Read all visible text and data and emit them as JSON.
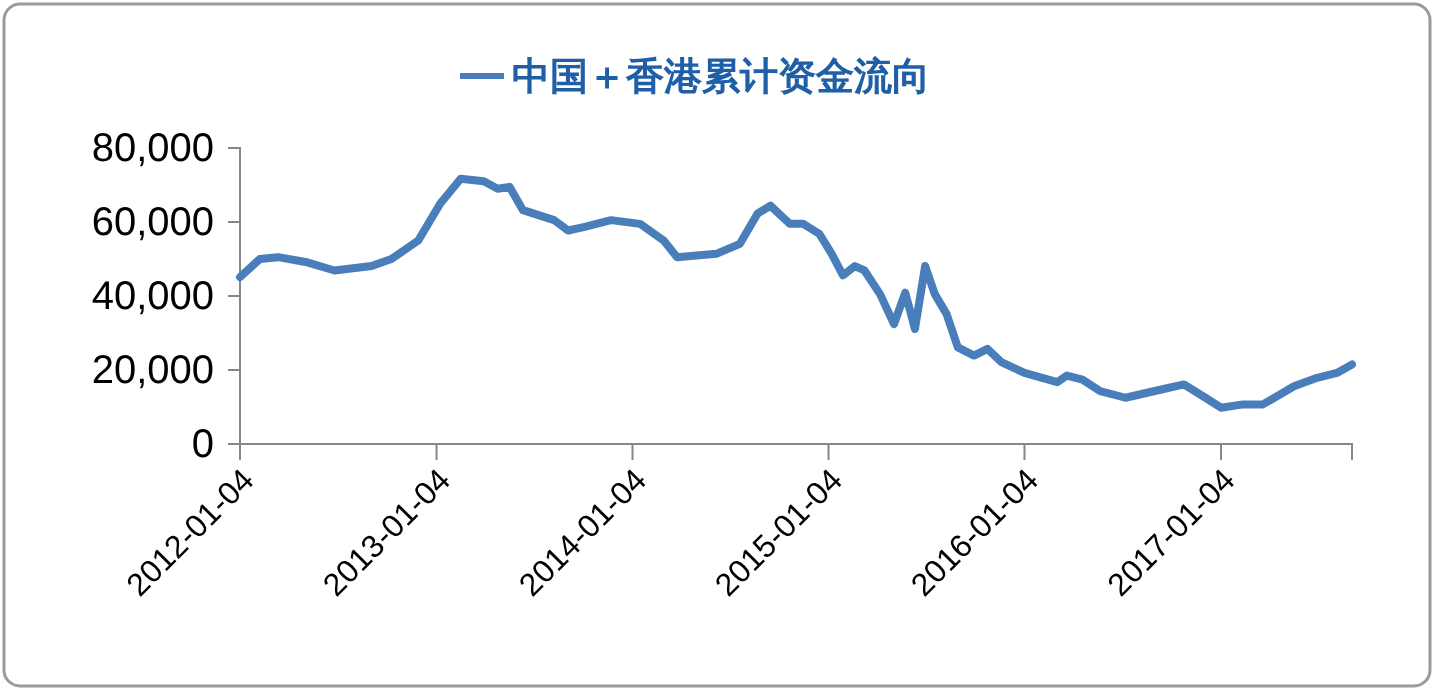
{
  "chart_data": {
    "type": "line",
    "legend": "top",
    "grid": false,
    "x": [
      "2012-01-04",
      "2012-02-10",
      "2012-03-15",
      "2012-05-05",
      "2012-06-28",
      "2012-09-05",
      "2012-10-12",
      "2012-12-01",
      "2013-01-11",
      "2013-02-18",
      "2013-04-02",
      "2013-04-28",
      "2013-05-20",
      "2013-06-14",
      "2013-08-11",
      "2013-09-06",
      "2013-10-05",
      "2013-11-25",
      "2014-01-18",
      "2014-03-03",
      "2014-03-28",
      "2014-06-09",
      "2014-07-23",
      "2014-08-25",
      "2014-09-18",
      "2014-10-24",
      "2014-11-18",
      "2014-12-18",
      "2015-01-10",
      "2015-01-31",
      "2015-02-22",
      "2015-03-12",
      "2015-04-10",
      "2015-05-06",
      "2015-05-27",
      "2015-06-14",
      "2015-07-03",
      "2015-07-21",
      "2015-08-12",
      "2015-09-02",
      "2015-10-02",
      "2015-10-27",
      "2015-11-22",
      "2016-01-04",
      "2016-03-05",
      "2016-03-23",
      "2016-04-21",
      "2016-05-24",
      "2016-07-10",
      "2016-09-17",
      "2016-10-27",
      "2016-12-06",
      "2017-01-04",
      "2017-02-14",
      "2017-03-23",
      "2017-05-20",
      "2017-07-02",
      "2017-08-08",
      "2017-09-05"
    ],
    "series": [
      {
        "name": "中国＋香港累计资金流向",
        "color": "#4a7ebb",
        "values": [
          45100,
          50000,
          50500,
          49200,
          46900,
          48100,
          50000,
          55000,
          65000,
          71700,
          71000,
          69000,
          69500,
          63200,
          60500,
          57700,
          58600,
          60500,
          59500,
          55000,
          50500,
          51400,
          54100,
          62300,
          64400,
          59500,
          59500,
          56800,
          51400,
          45600,
          48100,
          46900,
          40500,
          32400,
          40900,
          31100,
          48100,
          40500,
          35100,
          26100,
          23900,
          25700,
          22100,
          19200,
          16700,
          18500,
          17400,
          14300,
          12500,
          14800,
          16100,
          12500,
          9800,
          10700,
          10700,
          15600,
          17900,
          19200,
          21500
        ]
      }
    ],
    "xlim": [
      "2012-01-04",
      "2017-09-05"
    ],
    "xticks": [
      "2012-01-04",
      "2013-01-04",
      "2014-01-04",
      "2015-01-04",
      "2016-01-04",
      "2017-01-04"
    ],
    "ylim": [
      0,
      80000
    ],
    "yticks": [
      {
        "value": 0,
        "label": "0"
      },
      {
        "value": 20000,
        "label": "20,000"
      },
      {
        "value": 40000,
        "label": "40,000"
      },
      {
        "value": 60000,
        "label": "60,000"
      },
      {
        "value": 80000,
        "label": "80,000"
      }
    ]
  }
}
